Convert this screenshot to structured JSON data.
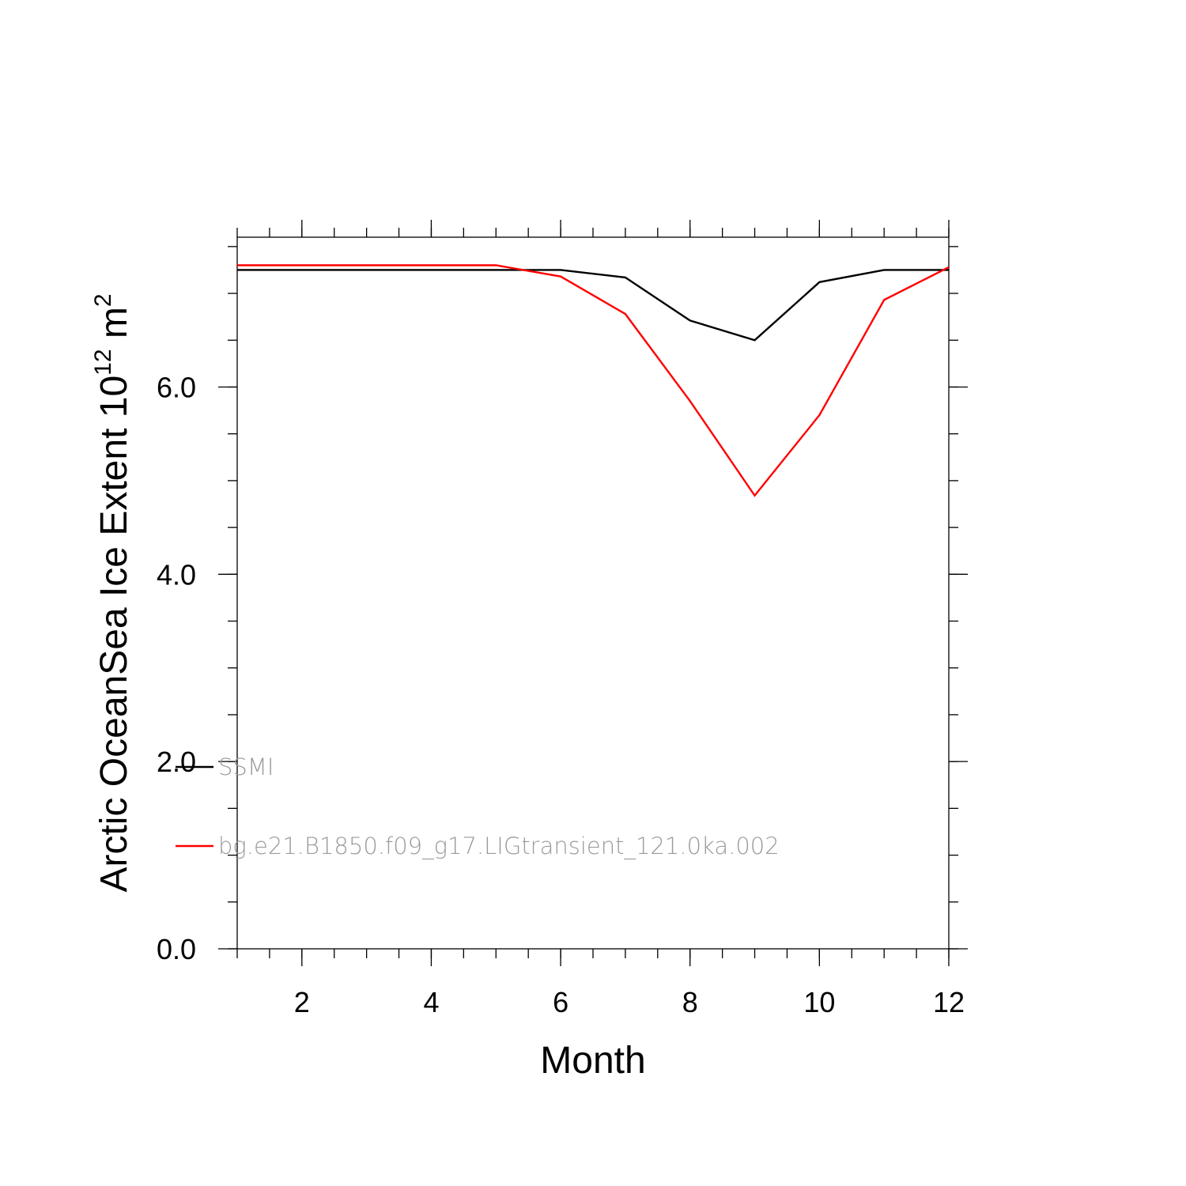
{
  "chart_data": {
    "type": "line",
    "xlabel": "Month",
    "ylabel": {
      "text": "Arctic OceanSea Ice Extent 10",
      "superscript": "12",
      "unit": " m",
      "unit_superscript": "2"
    },
    "xlim": [
      1,
      12
    ],
    "ylim": [
      0,
      7.6
    ],
    "x_ticks": [
      2,
      4,
      6,
      8,
      10,
      12
    ],
    "x_tick_labels": [
      "2",
      "4",
      "6",
      "8",
      "10",
      "12"
    ],
    "y_ticks": [
      0,
      2,
      4,
      6
    ],
    "y_tick_labels": [
      "0.0",
      "2.0",
      "4.0",
      "6.0"
    ],
    "x": [
      1,
      2,
      3,
      4,
      5,
      6,
      7,
      8,
      9,
      10,
      11,
      12
    ],
    "series": [
      {
        "name": "SSMI",
        "color": "#000000",
        "values": [
          7.25,
          7.25,
          7.25,
          7.25,
          7.25,
          7.25,
          7.17,
          6.71,
          6.5,
          7.12,
          7.25,
          7.25
        ]
      },
      {
        "name": "bg.e21.B1850.f09_g17.LIGtransient_121.0ka.002",
        "color": "#ff0000",
        "values": [
          7.3,
          7.3,
          7.3,
          7.3,
          7.3,
          7.18,
          6.78,
          5.85,
          4.84,
          5.7,
          6.93,
          7.28
        ]
      }
    ],
    "legend_position": "bottom-left-inside",
    "grid": false
  }
}
